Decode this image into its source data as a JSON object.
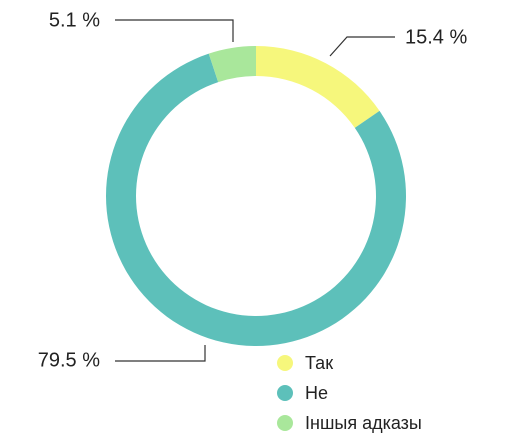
{
  "chart_data": {
    "type": "donut",
    "categories": [
      "Так",
      "Не",
      "Іншыя адказы"
    ],
    "values": [
      15.4,
      79.5,
      5.1
    ],
    "value_labels": [
      "15.4 %",
      "79.5 %",
      "5.1 %"
    ],
    "colors": [
      "#f6f77c",
      "#5dc0ba",
      "#a9e79b"
    ],
    "legend": "bottom-right"
  }
}
